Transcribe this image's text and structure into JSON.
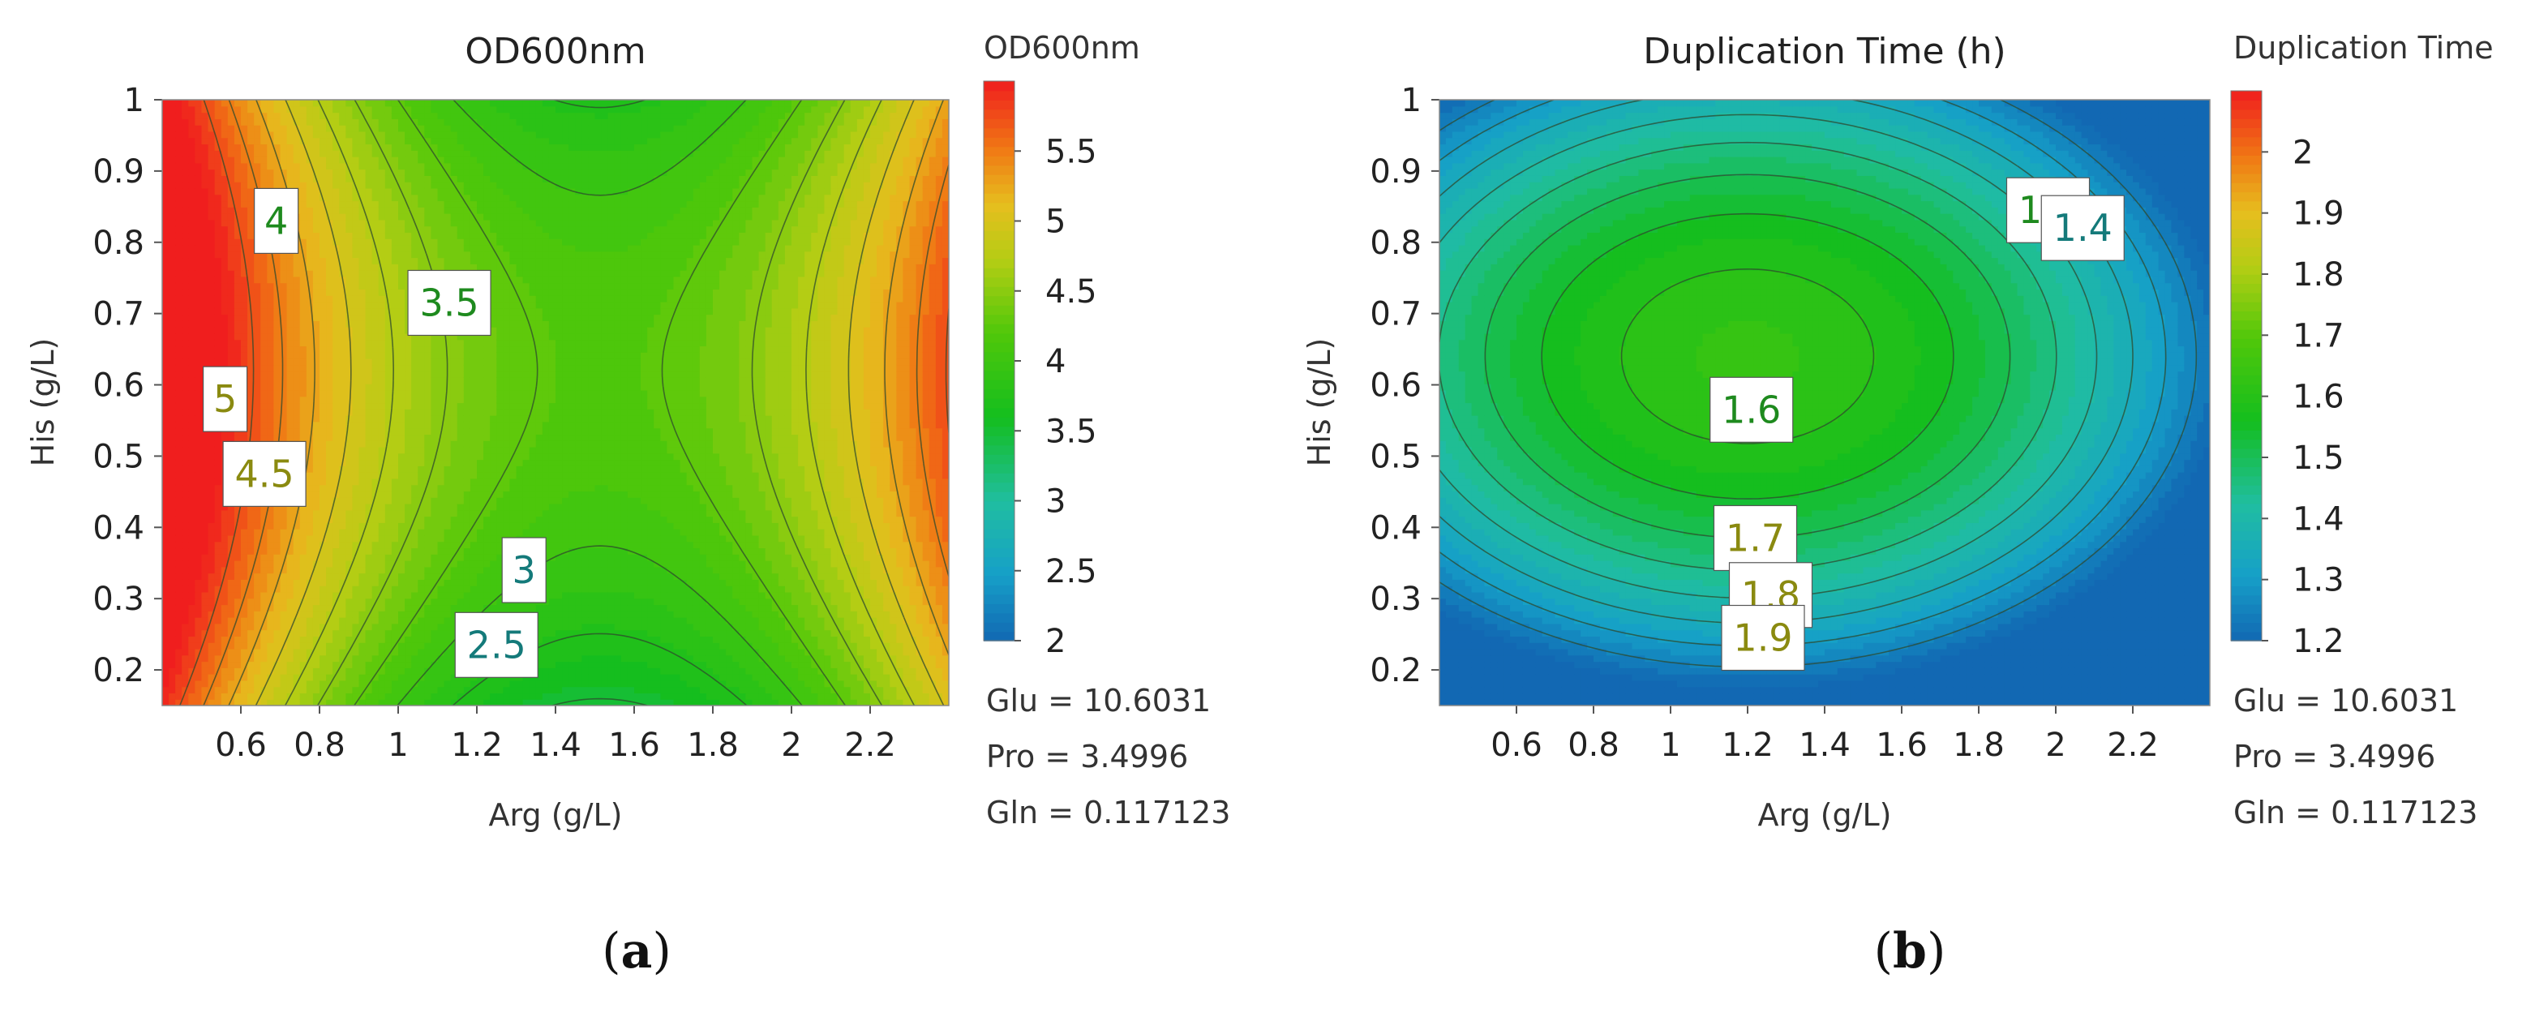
{
  "chart_data": [
    {
      "type": "contour",
      "panel_label": "(a)",
      "panel_letter": "a",
      "title": "OD600nm",
      "xlabel": "Arg (g/L)",
      "ylabel": "His (g/L)",
      "xlim": [
        0.4,
        2.4
      ],
      "ylim": [
        0.15,
        1.0
      ],
      "xticks": [
        0.6,
        0.8,
        1,
        1.2,
        1.4,
        1.6,
        1.8,
        2,
        2.2
      ],
      "yticks": [
        0.2,
        0.3,
        0.4,
        0.5,
        0.6,
        0.7,
        0.8,
        0.9,
        1
      ],
      "surface": {
        "form": "saddle",
        "center": [
          1.5,
          0.62
        ],
        "a": 2.0,
        "b": 3.3,
        "c": 4.2,
        "x_offset_term": 0.05
      },
      "contour_levels": [
        2.25,
        2.5,
        2.75,
        3,
        3.25,
        3.5,
        3.75,
        4,
        4.25,
        4.5,
        4.75,
        5,
        5.25,
        5.5,
        5.75
      ],
      "contour_labels": [
        {
          "text": "4",
          "x": 0.69,
          "y": 0.83
        },
        {
          "text": "3.5",
          "x": 1.13,
          "y": 0.715
        },
        {
          "text": "5",
          "x": 0.56,
          "y": 0.58
        },
        {
          "text": "4.5",
          "x": 0.66,
          "y": 0.475
        },
        {
          "text": "3",
          "x": 1.32,
          "y": 0.34
        },
        {
          "text": "2.5",
          "x": 1.25,
          "y": 0.235
        }
      ],
      "colorbar": {
        "title": "OD600nm",
        "range": [
          2,
          6
        ],
        "ticks": [
          "2",
          "2.5",
          "3",
          "3.5",
          "4",
          "4.5",
          "5",
          "5.5"
        ],
        "tick_values": [
          2,
          2.5,
          3,
          3.5,
          4,
          4.5,
          5,
          5.5
        ]
      },
      "fixed_factors": [
        "Glu = 10.6031",
        "Pro = 3.4996",
        "Gln = 0.117123"
      ]
    },
    {
      "type": "contour",
      "panel_label": "(b)",
      "panel_letter": "b",
      "title": "Duplication Time (h)",
      "xlabel": "Arg (g/L)",
      "ylabel": "His (g/L)",
      "xlim": [
        0.4,
        2.4
      ],
      "ylim": [
        0.15,
        1.0
      ],
      "xticks": [
        0.6,
        0.8,
        1,
        1.2,
        1.4,
        1.6,
        1.8,
        2,
        2.2
      ],
      "yticks": [
        0.2,
        0.3,
        0.4,
        0.5,
        0.6,
        0.7,
        0.8,
        0.9,
        1
      ],
      "surface": {
        "form": "saddle",
        "center": [
          1.2,
          0.64
        ],
        "a": -0.28,
        "b": 2.0,
        "c": 1.63,
        "x_offset_term": 0
      },
      "contour_levels": [
        1.25,
        1.3,
        1.35,
        1.4,
        1.45,
        1.5,
        1.55,
        1.6,
        1.65,
        1.7,
        1.75,
        1.8,
        1.85,
        1.9,
        1.95,
        2.0
      ],
      "dashed_contour_level": 2.0,
      "contour_labels": [
        {
          "text": "1.5",
          "x": 1.98,
          "y": 0.845
        },
        {
          "text": "1.4",
          "x": 2.07,
          "y": 0.82
        },
        {
          "text": "1.6",
          "x": 1.21,
          "y": 0.565
        },
        {
          "text": "1.7",
          "x": 1.22,
          "y": 0.385
        },
        {
          "text": "1.8",
          "x": 1.26,
          "y": 0.305
        },
        {
          "text": "1.9",
          "x": 1.24,
          "y": 0.245
        }
      ],
      "colorbar": {
        "title": "Duplication Time",
        "range": [
          1.2,
          2.1
        ],
        "ticks": [
          "1.2",
          "1.3",
          "1.4",
          "1.5",
          "1.6",
          "1.7",
          "1.8",
          "1.9",
          "2"
        ],
        "tick_values": [
          1.2,
          1.3,
          1.4,
          1.5,
          1.6,
          1.7,
          1.8,
          1.9,
          2.0
        ]
      },
      "fixed_factors": [
        "Glu = 10.6031",
        "Pro = 3.4996",
        "Gln = 0.117123"
      ]
    }
  ]
}
